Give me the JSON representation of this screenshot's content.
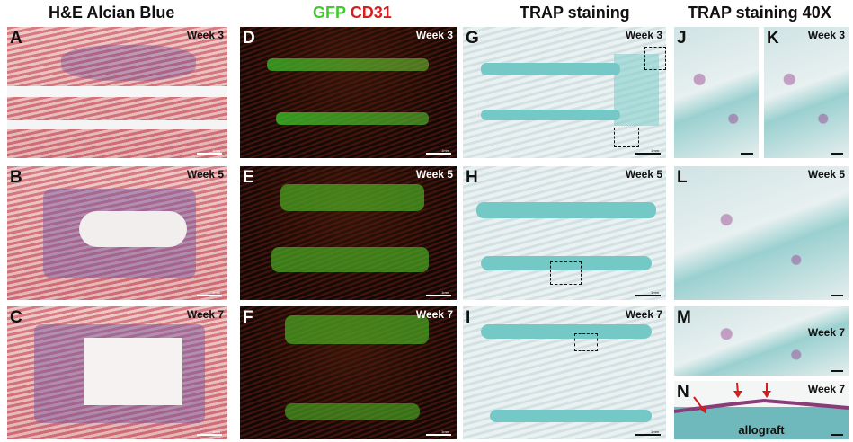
{
  "headers": {
    "he_alcian": "H&E Alcian Blue",
    "gfp": "GFP",
    "cd31": "CD31",
    "trap": "TRAP staining",
    "trap40": "TRAP staining 40X"
  },
  "colors": {
    "gfp": "#44c830",
    "cd31": "#d62020"
  },
  "panels": {
    "A": {
      "label": "A",
      "week": "Week 3",
      "scale": "1mm"
    },
    "B": {
      "label": "B",
      "week": "Week 5",
      "scale": "1mm"
    },
    "C": {
      "label": "C",
      "week": "Week 7",
      "scale": "1mm"
    },
    "D": {
      "label": "D",
      "week": "Week 3",
      "scale": "1mm"
    },
    "E": {
      "label": "E",
      "week": "Week 5",
      "scale": "1mm"
    },
    "F": {
      "label": "F",
      "week": "Week 7",
      "scale": "1mm"
    },
    "G": {
      "label": "G",
      "week": "Week 3",
      "scale": "1mm"
    },
    "H": {
      "label": "H",
      "week": "Week 5",
      "scale": "1mm"
    },
    "I": {
      "label": "I",
      "week": "Week 7",
      "scale": "1mm"
    },
    "J": {
      "label": "J"
    },
    "K": {
      "label": "K",
      "week": "Week 3"
    },
    "L": {
      "label": "L",
      "week": "Week 5"
    },
    "M": {
      "label": "M",
      "week": "Week 7"
    },
    "N": {
      "label": "N",
      "week": "Week 7",
      "annotation": "allograft"
    }
  }
}
